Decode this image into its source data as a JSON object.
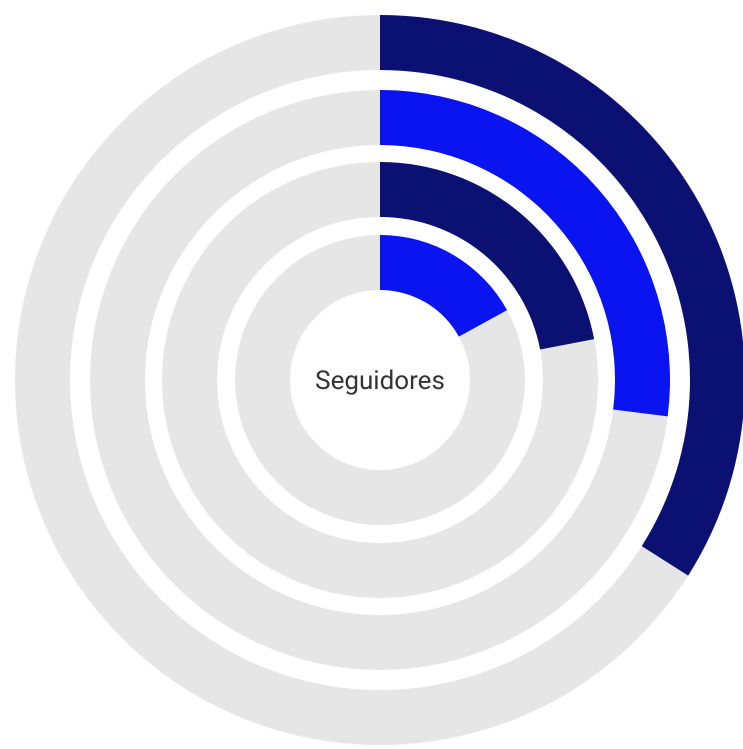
{
  "chart_data": {
    "type": "radialBar",
    "title": "Seguidores",
    "categories": [
      null,
      null,
      null,
      null
    ],
    "values": [
      34,
      27,
      22,
      17
    ],
    "colors": [
      "#0b1172",
      "#0a14f0",
      "#0b1172",
      "#0a14f0"
    ],
    "track_color": "#e6e6e6",
    "ylim": [
      0,
      100
    ]
  }
}
